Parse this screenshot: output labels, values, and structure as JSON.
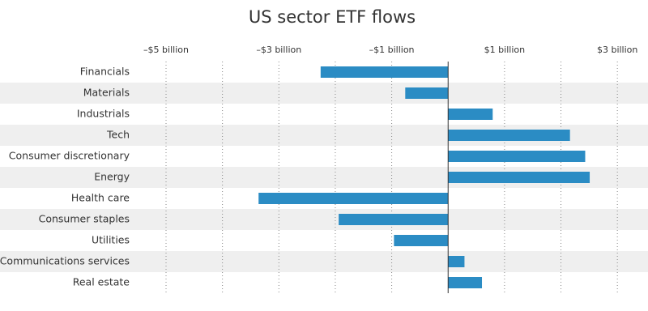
{
  "chart_data": {
    "type": "bar",
    "orientation": "horizontal",
    "title": "US sector ETF flows",
    "categories": [
      "Financials",
      "Materials",
      "Industrials",
      "Tech",
      "Consumer discretionary",
      "Energy",
      "Health care",
      "Consumer staples",
      "Utilities",
      "Communications services",
      "Real estate"
    ],
    "values": [
      -2.26,
      -0.76,
      0.79,
      2.16,
      2.43,
      2.51,
      -3.36,
      -1.94,
      -0.96,
      0.29,
      0.6
    ],
    "color": "#2b8cc4",
    "xlim": [
      -5,
      3.5
    ],
    "xticks": [
      {
        "value": -5,
        "label": "–$5 billion"
      },
      {
        "value": -3,
        "label": "–$3 billion"
      },
      {
        "value": -1,
        "label": "–$1 billion"
      },
      {
        "value": 1,
        "label": "$1 billion"
      },
      {
        "value": 3,
        "label": "$3 billion"
      }
    ],
    "xminor_ticks": [
      -4,
      -2,
      2,
      4
    ],
    "grid": true,
    "striped_rows": true
  }
}
